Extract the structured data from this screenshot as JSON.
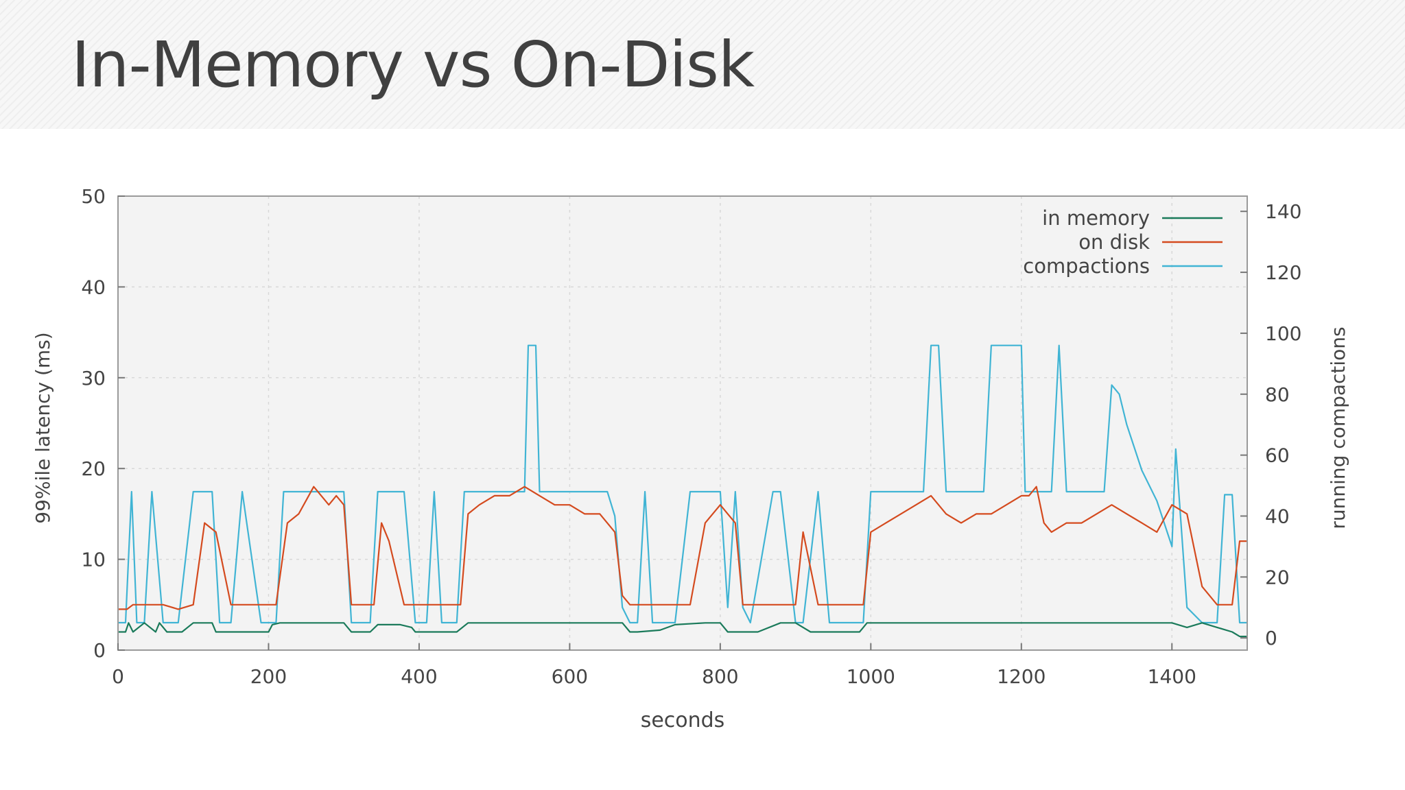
{
  "slide": {
    "title": "In-Memory vs On-Disk"
  },
  "colors": {
    "in_memory": "#1a7a5a",
    "on_disk": "#d44a1e",
    "compactions": "#40b4d4",
    "plot_background": "#f3f3f3",
    "grid": "#d8d8d8"
  },
  "chart_data": {
    "type": "line",
    "xlabel": "seconds",
    "ylabel": "99%ile latency (ms)",
    "y2label": "running compactions",
    "xlim": [
      0,
      1500
    ],
    "ylim": [
      0,
      50
    ],
    "y2lim": [
      -4,
      145
    ],
    "x_ticks": [
      0,
      200,
      400,
      600,
      800,
      1000,
      1200,
      1400
    ],
    "y_ticks": [
      0,
      10,
      20,
      30,
      40,
      50
    ],
    "y2_ticks": [
      0,
      20,
      40,
      60,
      80,
      100,
      120,
      140
    ],
    "grid": true,
    "legend_position": "top-right",
    "series": [
      {
        "name": "in memory",
        "axis": "left",
        "x": [
          0,
          10,
          14,
          20,
          35,
          50,
          55,
          65,
          85,
          100,
          115,
          125,
          130,
          135,
          140,
          150,
          165,
          185,
          200,
          205,
          215,
          240,
          260,
          280,
          300,
          310,
          335,
          345,
          375,
          390,
          395,
          400,
          410,
          430,
          450,
          465,
          480,
          500,
          520,
          560,
          600,
          640,
          660,
          670,
          680,
          690,
          720,
          740,
          780,
          800,
          810,
          820,
          830,
          850,
          880,
          900,
          920,
          935,
          945,
          965,
          985,
          990,
          995,
          1000,
          1050,
          1100,
          1150,
          1200,
          1250,
          1300,
          1350,
          1400,
          1420,
          1440,
          1460,
          1480,
          1490,
          1500
        ],
        "y": [
          2,
          2,
          3,
          2,
          3,
          2,
          3,
          2,
          2,
          3,
          3,
          3,
          2,
          2,
          2,
          2,
          2,
          2,
          2,
          2.8,
          3,
          3,
          3,
          3,
          3,
          2,
          2,
          2.8,
          2.8,
          2.5,
          2,
          2,
          2,
          2,
          2,
          3,
          3,
          3,
          3,
          3,
          3,
          3,
          3,
          3,
          2,
          2,
          2.2,
          2.8,
          3,
          3,
          2,
          2,
          2,
          2,
          3,
          3,
          2,
          2,
          2,
          2,
          2,
          2.5,
          3,
          3,
          3,
          3,
          3,
          3,
          3,
          3,
          3,
          3,
          2.5,
          3,
          2.5,
          2,
          1.5,
          1.5
        ]
      },
      {
        "name": "on disk",
        "axis": "left",
        "x": [
          0,
          12,
          20,
          40,
          60,
          80,
          100,
          115,
          130,
          150,
          170,
          200,
          210,
          225,
          240,
          260,
          270,
          280,
          290,
          300,
          310,
          320,
          340,
          350,
          360,
          380,
          395,
          400,
          410,
          420,
          430,
          440,
          455,
          465,
          480,
          500,
          520,
          540,
          560,
          580,
          600,
          620,
          640,
          660,
          670,
          680,
          690,
          700,
          720,
          740,
          760,
          780,
          800,
          810,
          820,
          830,
          840,
          860,
          870,
          880,
          900,
          910,
          930,
          945,
          960,
          975,
          990,
          1000,
          1020,
          1040,
          1060,
          1080,
          1090,
          1100,
          1120,
          1140,
          1160,
          1180,
          1200,
          1210,
          1220,
          1230,
          1240,
          1260,
          1280,
          1300,
          1320,
          1340,
          1360,
          1380,
          1400,
          1420,
          1440,
          1460,
          1470,
          1480,
          1490,
          1500
        ],
        "y": [
          4.5,
          4.5,
          5,
          5,
          5,
          4.5,
          5,
          14,
          13,
          5,
          5,
          5,
          5,
          14,
          15,
          18,
          17,
          16,
          17,
          16,
          5,
          5,
          5,
          14,
          12,
          5,
          5,
          5,
          5,
          5,
          5,
          5,
          5,
          15,
          16,
          17,
          17,
          18,
          17,
          16,
          16,
          15,
          15,
          13,
          6,
          5,
          5,
          5,
          5,
          5,
          5,
          14,
          16,
          15,
          14,
          5,
          5,
          5,
          5,
          5,
          5,
          13,
          5,
          5,
          5,
          5,
          5,
          13,
          14,
          15,
          16,
          17,
          16,
          15,
          14,
          15,
          15,
          16,
          17,
          17,
          18,
          14,
          13,
          14,
          14,
          15,
          16,
          15,
          14,
          13,
          16,
          15,
          7,
          5,
          5,
          5,
          12,
          12
        ]
      },
      {
        "name": "compactions",
        "axis": "right",
        "x": [
          0,
          10,
          18,
          25,
          35,
          45,
          60,
          80,
          100,
          115,
          125,
          135,
          150,
          165,
          190,
          210,
          220,
          260,
          290,
          300,
          310,
          335,
          345,
          380,
          395,
          410,
          420,
          430,
          450,
          460,
          465,
          540,
          545,
          555,
          560,
          600,
          640,
          650,
          660,
          670,
          680,
          690,
          700,
          710,
          720,
          740,
          760,
          800,
          810,
          820,
          830,
          840,
          870,
          880,
          900,
          910,
          930,
          945,
          960,
          975,
          990,
          1000,
          1070,
          1080,
          1090,
          1100,
          1150,
          1160,
          1200,
          1205,
          1220,
          1240,
          1250,
          1260,
          1300,
          1310,
          1320,
          1330,
          1340,
          1360,
          1380,
          1400,
          1405,
          1420,
          1440,
          1460,
          1470,
          1480,
          1490,
          1500
        ],
        "y": [
          5,
          5,
          48,
          5,
          5,
          48,
          5,
          5,
          48,
          48,
          48,
          5,
          5,
          48,
          5,
          5,
          48,
          48,
          48,
          48,
          5,
          5,
          48,
          48,
          5,
          5,
          48,
          5,
          5,
          48,
          48,
          48,
          96,
          96,
          48,
          48,
          48,
          48,
          40,
          10,
          5,
          5,
          48,
          5,
          5,
          5,
          48,
          48,
          10,
          48,
          10,
          5,
          48,
          48,
          5,
          5,
          48,
          5,
          5,
          5,
          5,
          48,
          48,
          96,
          96,
          48,
          48,
          96,
          96,
          48,
          48,
          48,
          96,
          48,
          48,
          48,
          83,
          80,
          70,
          55,
          45,
          30,
          62,
          10,
          5,
          5,
          47,
          47,
          5,
          5
        ]
      }
    ],
    "legend": [
      "in memory",
      "on disk",
      "compactions"
    ]
  }
}
